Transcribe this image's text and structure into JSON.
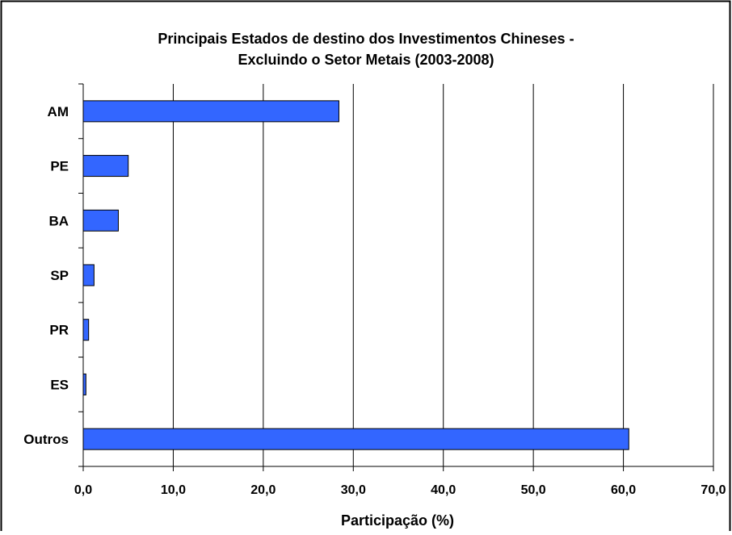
{
  "chart_data": {
    "type": "bar",
    "orientation": "horizontal",
    "title_lines": [
      "Principais Estados de destino dos Investimentos Chineses -",
      "Excluindo o Setor Metais (2003-2008)"
    ],
    "xlabel": "Participação (%)",
    "ylabel": "",
    "categories": [
      "AM",
      "PE",
      "BA",
      "SP",
      "PR",
      "ES",
      "Outros"
    ],
    "values": [
      28.4,
      5.0,
      3.9,
      1.2,
      0.6,
      0.3,
      60.6
    ],
    "xlim": [
      0,
      70
    ],
    "xticks": [
      0,
      10,
      20,
      30,
      40,
      50,
      60,
      70
    ],
    "xtick_labels": [
      "0,0",
      "10,0",
      "20,0",
      "30,0",
      "40,0",
      "50,0",
      "60,0",
      "70,0"
    ],
    "grid": "vertical-major",
    "legend": "none",
    "bar_color": "#3366FF",
    "bar_edge_color": "#000000"
  }
}
